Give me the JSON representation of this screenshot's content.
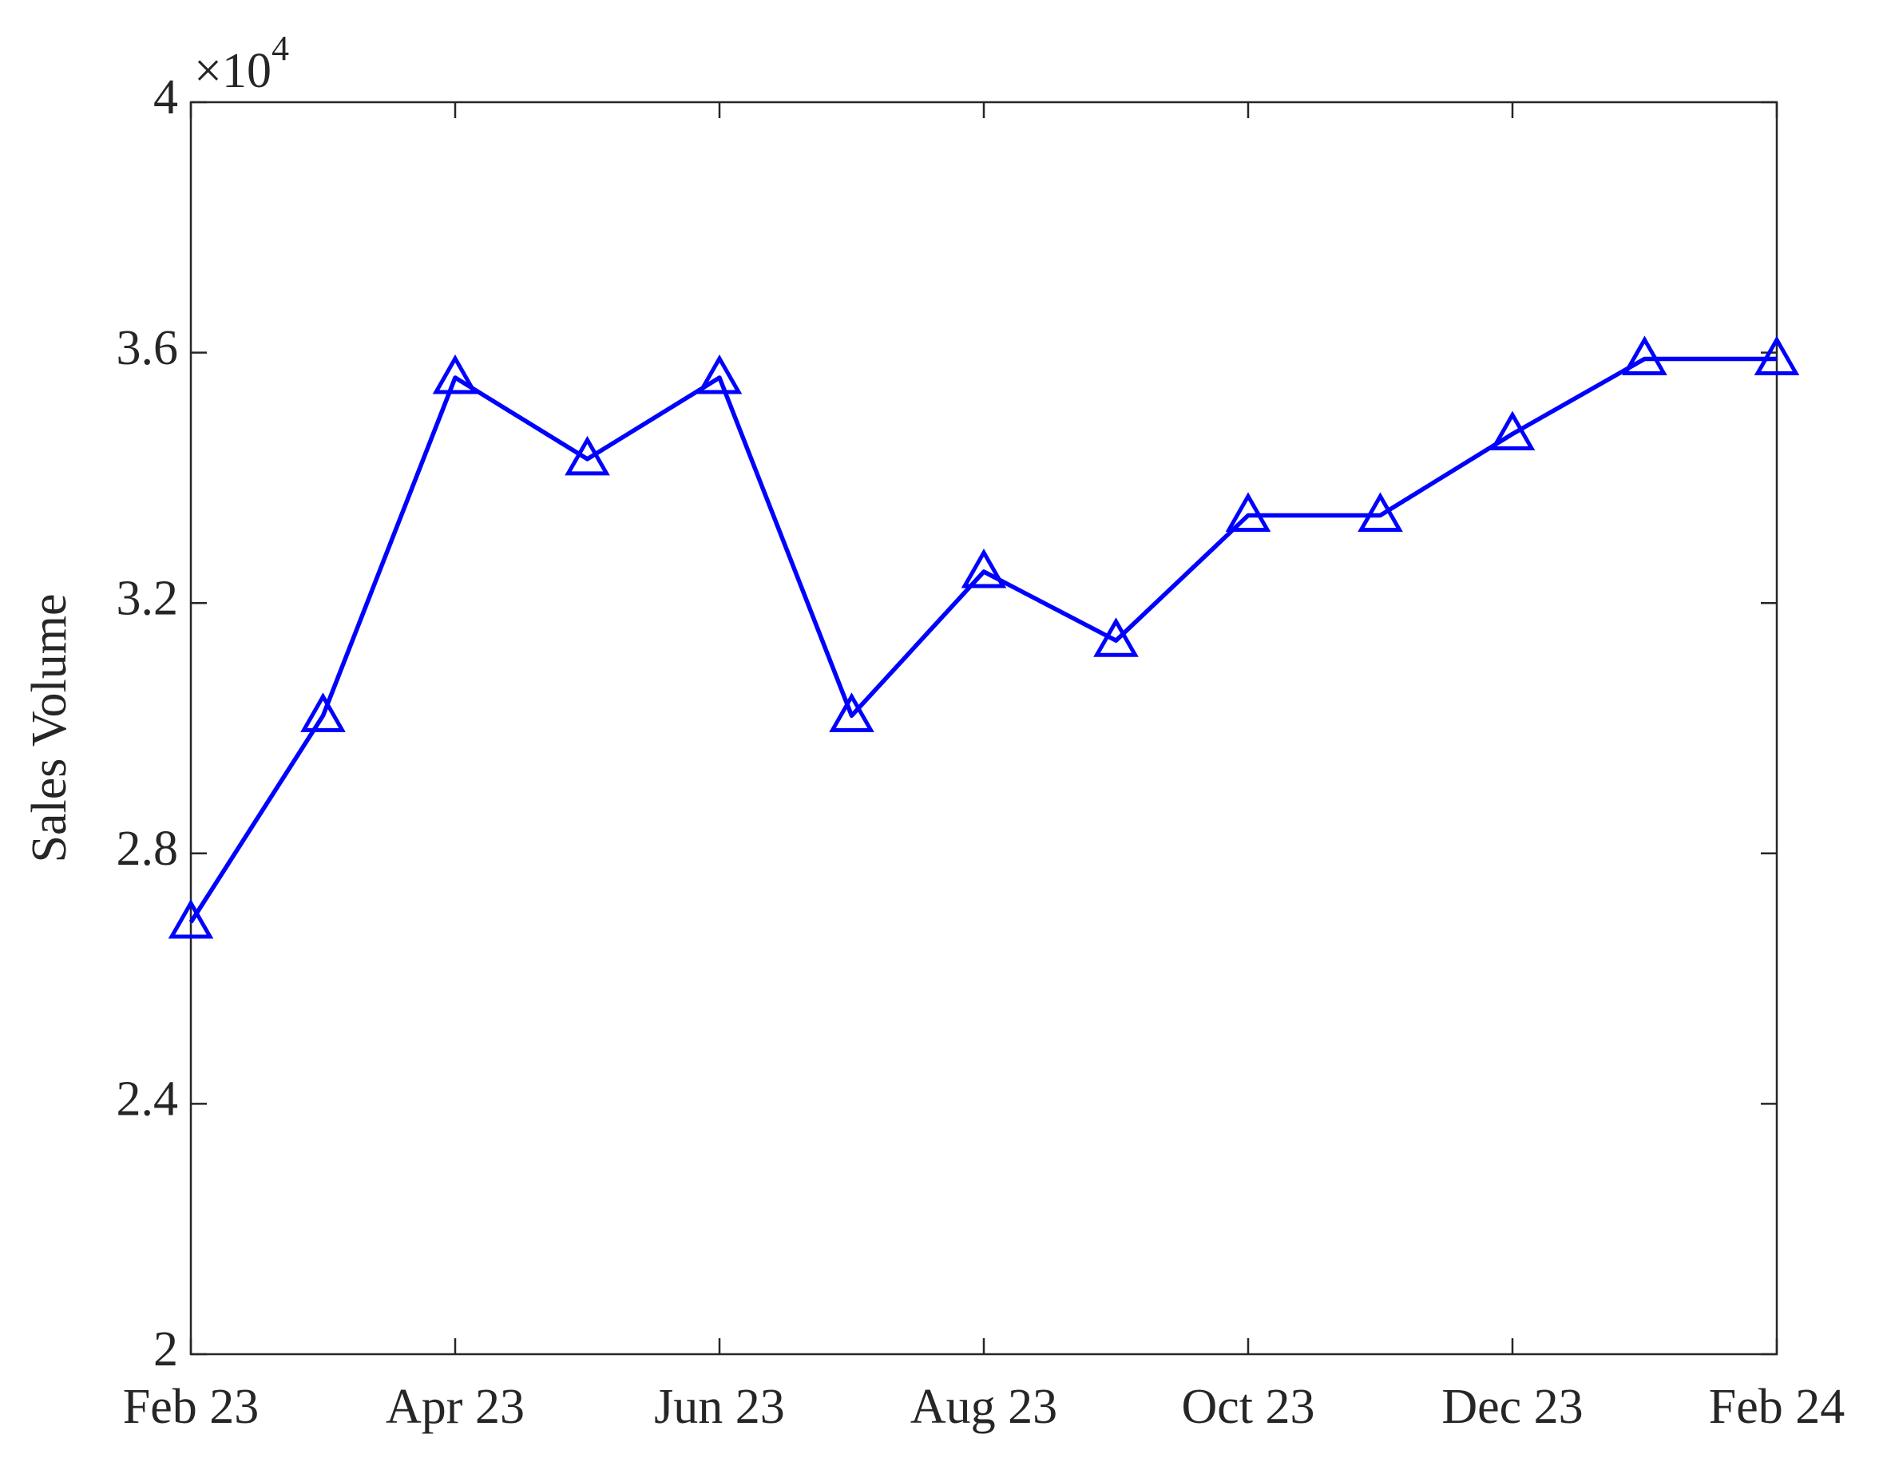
{
  "chart_data": {
    "type": "line",
    "marker": "triangle",
    "color": "#0000ff",
    "y_label": "Sales Volume",
    "y_multiplier": {
      "base": "×10",
      "exponent": "4"
    },
    "categories": [
      "Feb 23",
      null,
      "Apr 23",
      null,
      "Jun 23",
      null,
      "Aug 23",
      null,
      "Oct 23",
      null,
      "Dec 23",
      null,
      "Feb 24"
    ],
    "values": [
      26900,
      30200,
      35600,
      34300,
      35600,
      30200,
      32500,
      31400,
      33400,
      33400,
      34700,
      35900,
      35900
    ],
    "ylim": [
      20000,
      40000
    ],
    "yticks": [
      {
        "value": 20000,
        "label": "2"
      },
      {
        "value": 24000,
        "label": "2.4"
      },
      {
        "value": 28000,
        "label": "2.8"
      },
      {
        "value": 32000,
        "label": "3.2"
      },
      {
        "value": 36000,
        "label": "3.6"
      },
      {
        "value": 40000,
        "label": "4"
      }
    ],
    "grid": false
  }
}
